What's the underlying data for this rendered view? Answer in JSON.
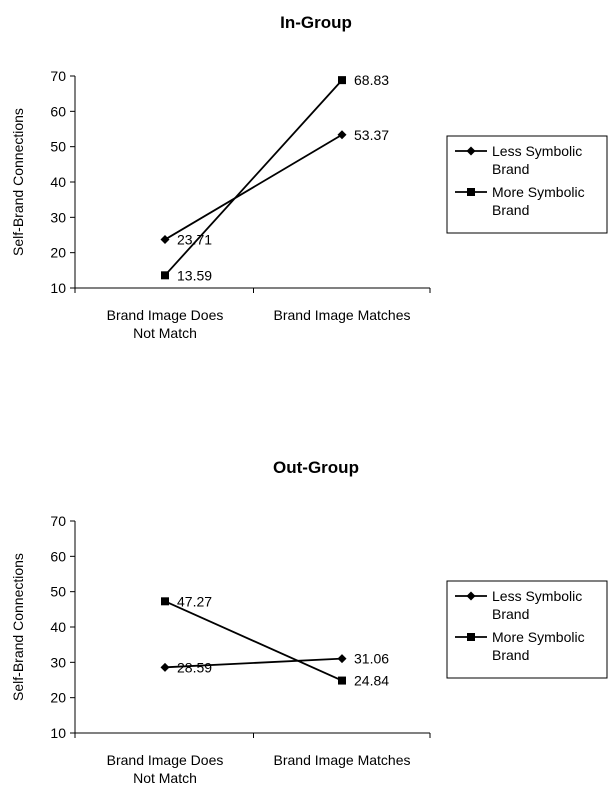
{
  "chart_data": [
    {
      "type": "line",
      "title": "In-Group",
      "ylabel": "Self-Brand Connections",
      "xlabel": "",
      "ylim": [
        10,
        70
      ],
      "yticks": [
        10,
        20,
        30,
        40,
        50,
        60,
        70
      ],
      "categories": [
        [
          "Brand Image Does",
          "Not Match"
        ],
        [
          "Brand Image Matches"
        ]
      ],
      "series": [
        {
          "name": [
            "Less Symbolic",
            "Brand"
          ],
          "marker": "diamond",
          "values": [
            23.71,
            53.37
          ],
          "labels": [
            "23.71",
            "53.37"
          ]
        },
        {
          "name": [
            "More Symbolic",
            "Brand"
          ],
          "marker": "square",
          "values": [
            13.59,
            68.83
          ],
          "labels": [
            "13.59",
            "68.83"
          ]
        }
      ],
      "legend": "right",
      "grid": false
    },
    {
      "type": "line",
      "title": "Out-Group",
      "ylabel": "Self-Brand Connections",
      "xlabel": "",
      "ylim": [
        10,
        70
      ],
      "yticks": [
        10,
        20,
        30,
        40,
        50,
        60,
        70
      ],
      "categories": [
        [
          "Brand Image Does",
          "Not Match"
        ],
        [
          "Brand Image Matches"
        ]
      ],
      "series": [
        {
          "name": [
            "Less Symbolic",
            "Brand"
          ],
          "marker": "diamond",
          "values": [
            28.59,
            31.06
          ],
          "labels": [
            "28.59",
            "31.06"
          ]
        },
        {
          "name": [
            "More Symbolic",
            "Brand"
          ],
          "marker": "square",
          "values": [
            47.27,
            24.84
          ],
          "labels": [
            "47.27",
            "24.84"
          ]
        }
      ],
      "legend": "right",
      "grid": false
    }
  ]
}
